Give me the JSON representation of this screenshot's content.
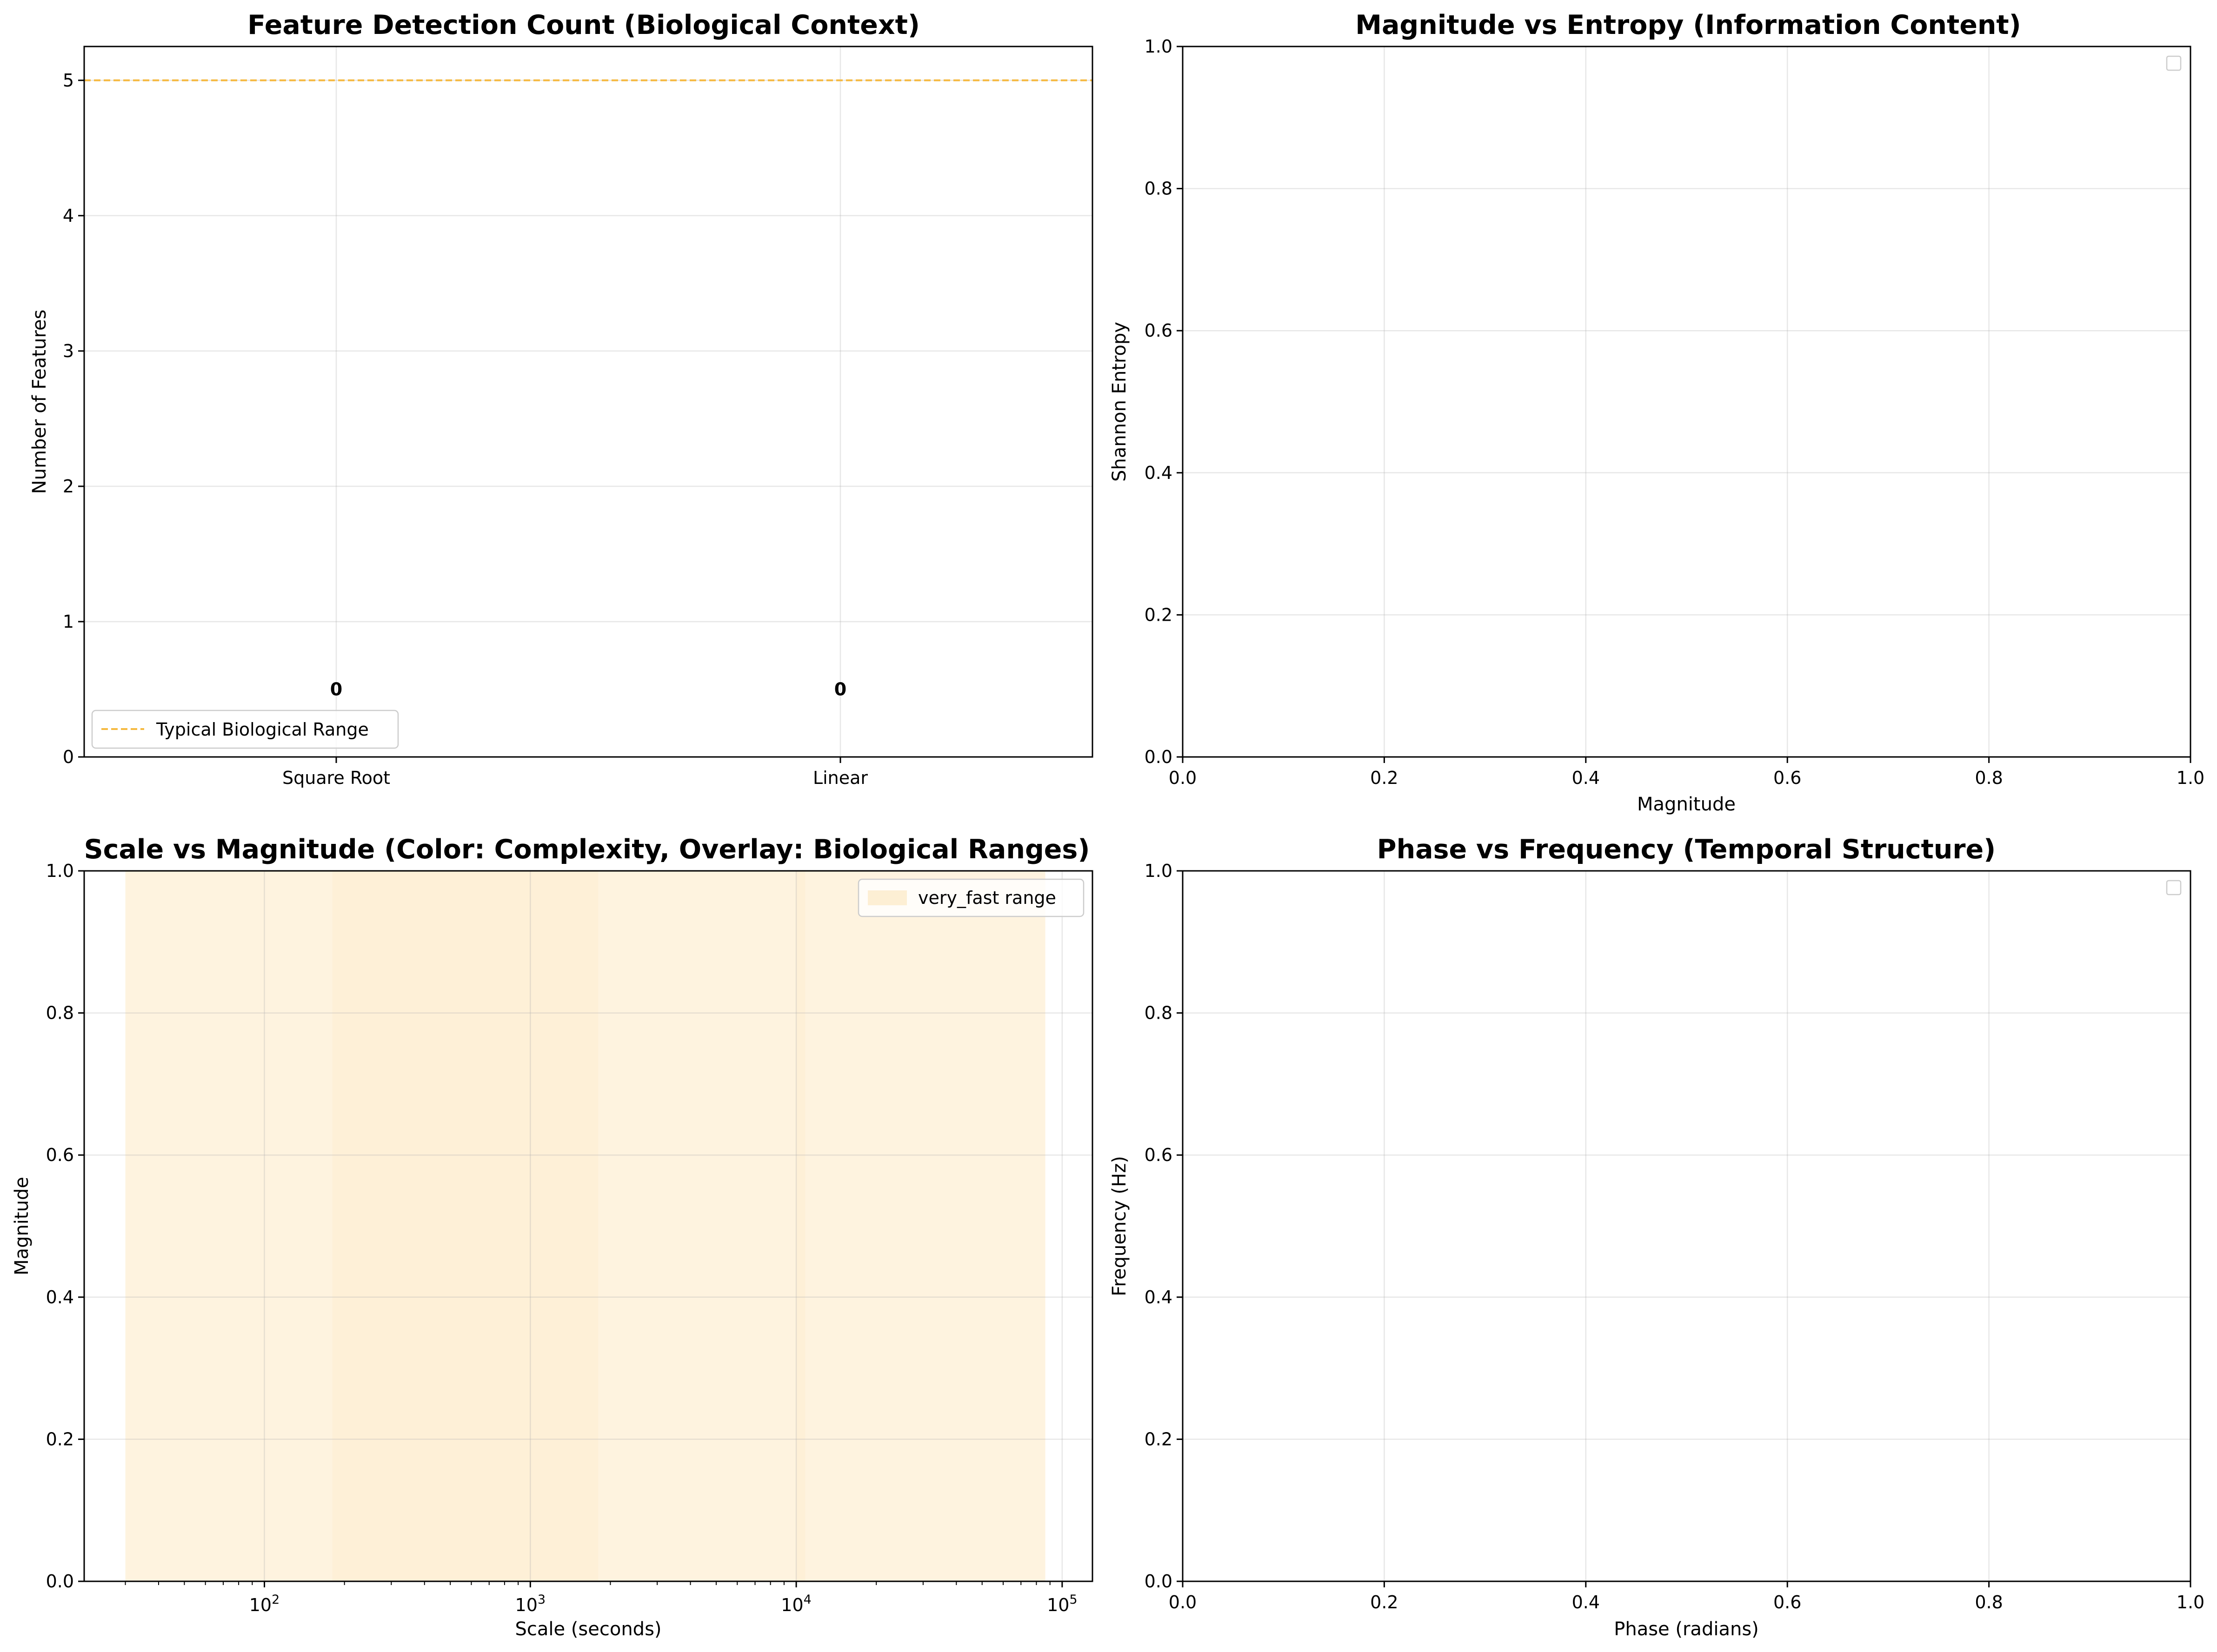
{
  "chart_data": [
    {
      "type": "bar",
      "title": "Feature Detection Count (Biological Context)",
      "xlabel": "",
      "ylabel": "Number of Features",
      "categories": [
        "Square Root",
        "Linear"
      ],
      "values": [
        0,
        0
      ],
      "data_labels": [
        "0",
        "0"
      ],
      "ylim": [
        0,
        5.25
      ],
      "yticks": [
        "0",
        "1",
        "2",
        "3",
        "4",
        "5"
      ],
      "grid": true,
      "reference_line": {
        "y": 5,
        "label": "Typical Biological Range",
        "color": "#f5b940",
        "style": "dashed"
      },
      "legend": {
        "placement": "lower-left",
        "entries": [
          "Typical Biological Range"
        ]
      }
    },
    {
      "type": "scatter",
      "title": "Magnitude vs Entropy (Information Content)",
      "xlabel": "Magnitude",
      "ylabel": "Shannon Entropy",
      "xlim": [
        0,
        1
      ],
      "ylim": [
        0,
        1
      ],
      "xticks": [
        "0.0",
        "0.2",
        "0.4",
        "0.6",
        "0.8",
        "1.0"
      ],
      "yticks": [
        "0.0",
        "0.2",
        "0.4",
        "0.6",
        "0.8",
        "1.0"
      ],
      "points": [],
      "grid": true,
      "legend": {
        "placement": "top-right",
        "entries": []
      }
    },
    {
      "type": "scatter",
      "title": "Scale vs Magnitude (Color: Complexity, Overlay: Biological Ranges)",
      "xlabel": "Scale (seconds)",
      "ylabel": "Magnitude",
      "xscale": "log",
      "xlim": [
        21,
        130000
      ],
      "ylim": [
        0,
        1
      ],
      "xticks": [
        {
          "base": "10",
          "exp": "2"
        },
        {
          "base": "10",
          "exp": "3"
        },
        {
          "base": "10",
          "exp": "4"
        },
        {
          "base": "10",
          "exp": "5"
        }
      ],
      "yticks": [
        "0.0",
        "0.2",
        "0.4",
        "0.6",
        "0.8",
        "1.0"
      ],
      "points": [],
      "grid": true,
      "overlays": [
        {
          "label": "very_fast range",
          "xmin": 30,
          "xmax": 86400,
          "color": "#fdefd4"
        },
        {
          "label": "",
          "xmin": 180,
          "xmax": 1800,
          "color": "#fdefd4"
        },
        {
          "label": "",
          "xmin": 10000,
          "xmax": 10800,
          "color": "#fdefd4"
        }
      ],
      "legend": {
        "placement": "top-right",
        "entries": [
          "very_fast range"
        ]
      }
    },
    {
      "type": "scatter",
      "title": "Phase vs Frequency (Temporal Structure)",
      "xlabel": "Phase (radians)",
      "ylabel": "Frequency (Hz)",
      "xlim": [
        0,
        1
      ],
      "ylim": [
        0,
        1
      ],
      "xticks": [
        "0.0",
        "0.2",
        "0.4",
        "0.6",
        "0.8",
        "1.0"
      ],
      "yticks": [
        "0.0",
        "0.2",
        "0.4",
        "0.6",
        "0.8",
        "1.0"
      ],
      "points": [],
      "grid": true,
      "legend": {
        "placement": "top-right",
        "entries": []
      }
    }
  ]
}
